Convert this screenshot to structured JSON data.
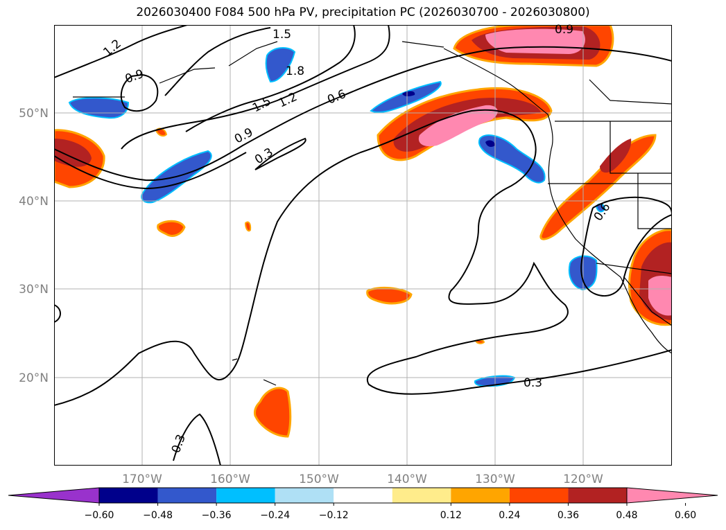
{
  "title": "2026030400 F084 500 hPa PV, precipitation PC (2026030700 - 2026030800)",
  "map": {
    "projection": "PlateCarree",
    "lon_range": [
      -180,
      -110
    ],
    "lat_range": [
      10,
      60
    ],
    "gridlines": true,
    "lat_ticks": [
      "50°N",
      "40°N",
      "30°N",
      "20°N"
    ],
    "lon_ticks": [
      "170°W",
      "160°W",
      "150°W",
      "140°W",
      "130°W",
      "120°W"
    ],
    "contour_levels": [
      "0.3",
      "0.6",
      "0.9",
      "1.2",
      "1.5",
      "1.8"
    ],
    "contour_labels_shown": [
      "1.2",
      "0.9",
      "1.5",
      "1.8",
      "1.5",
      "1.2",
      "0.6",
      "0.9",
      "0.3",
      "0.6",
      "0.9",
      "0.3",
      "0.3"
    ]
  },
  "colorbar": {
    "ticks": [
      "−0.60",
      "−0.48",
      "−0.36",
      "−0.24",
      "−0.12",
      "0.12",
      "0.24",
      "0.36",
      "0.48",
      "0.60"
    ],
    "colors": [
      "#9932CC",
      "#00008B",
      "#3358CC",
      "#00BFFF",
      "#AFE0F5",
      "#FFFFFF",
      "#FFEC8B",
      "#FFA500",
      "#FF4500",
      "#B22222",
      "#FF88B0"
    ],
    "extend": "both"
  }
}
